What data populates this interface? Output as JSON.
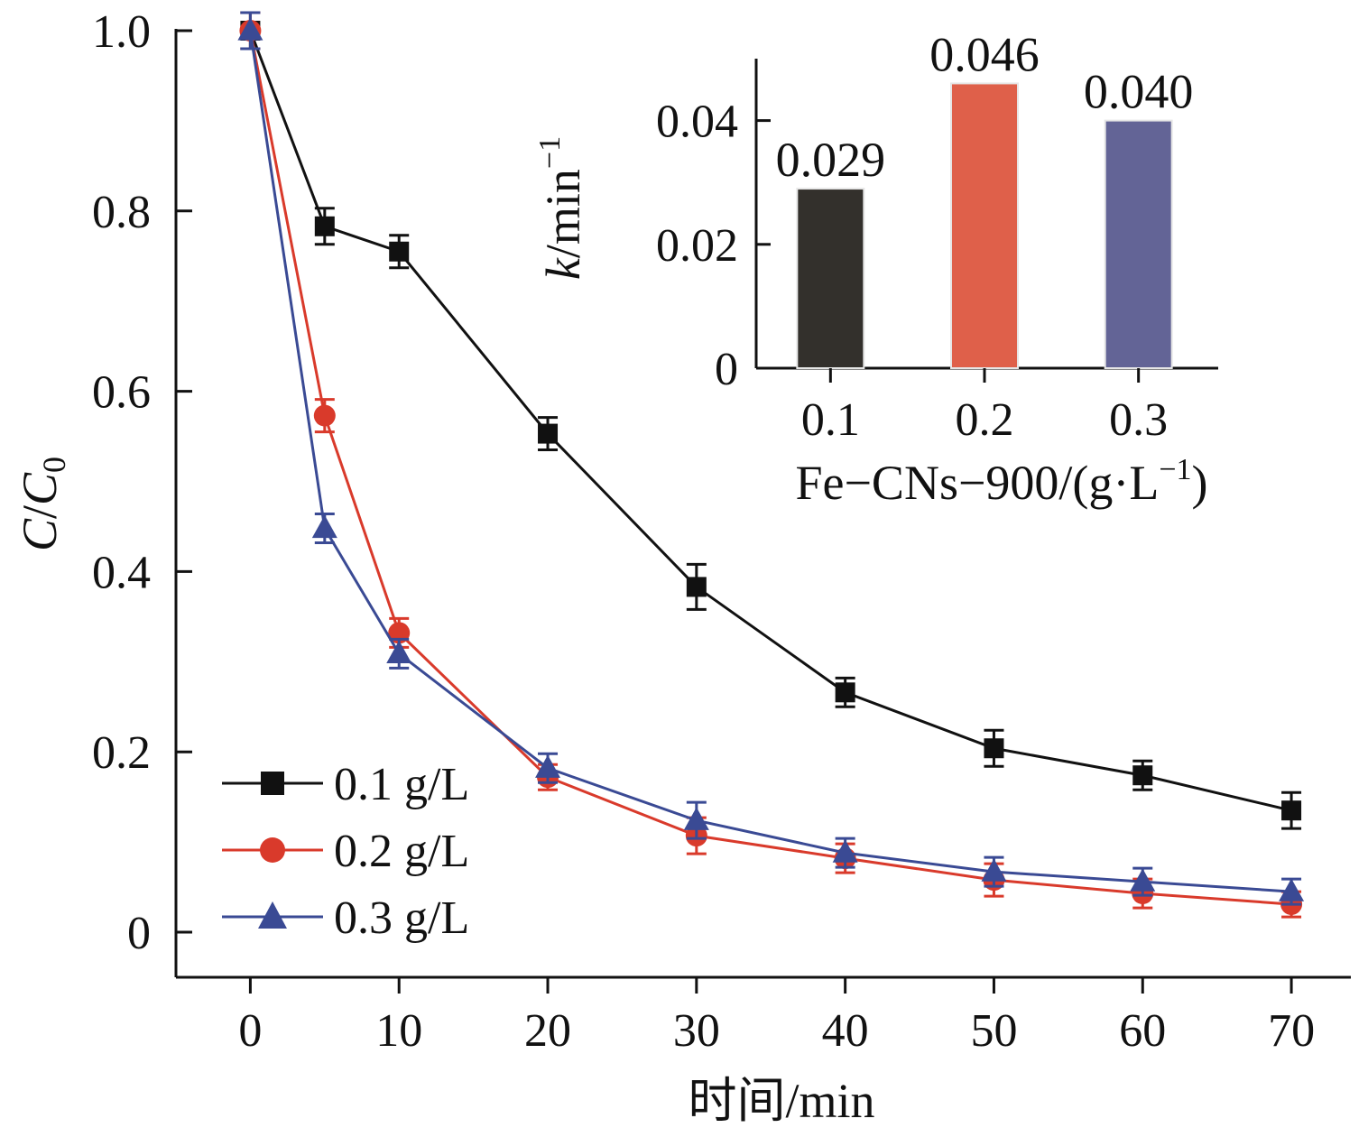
{
  "chart_data": [
    {
      "type": "line",
      "xlabel": "时间/min",
      "ylabel_main": "C",
      "ylabel_slash": "/",
      "ylabel_sub_base": "C",
      "ylabel_sub": "0",
      "xlim": [
        -5,
        74
      ],
      "ylim": [
        -0.05,
        1.0
      ],
      "xticks": [
        0,
        10,
        20,
        30,
        40,
        50,
        60,
        70
      ],
      "xtick_labels": [
        "0",
        "10",
        "20",
        "30",
        "40",
        "50",
        "60",
        "70"
      ],
      "yticks": [
        0,
        0.2,
        0.4,
        0.6,
        0.8,
        1.0
      ],
      "ytick_labels": [
        "0",
        "0.2",
        "0.4",
        "0.6",
        "0.8",
        "1.0"
      ],
      "grid": false,
      "legend_position": "bottom-left",
      "series": [
        {
          "name": "0.1 g/L",
          "color": "#111111",
          "marker": "square",
          "x": [
            0,
            5,
            10,
            20,
            30,
            40,
            50,
            60,
            70
          ],
          "y": [
            1.0,
            0.783,
            0.755,
            0.553,
            0.383,
            0.266,
            0.204,
            0.174,
            0.135
          ],
          "err": [
            0.02,
            0.02,
            0.018,
            0.018,
            0.025,
            0.016,
            0.02,
            0.016,
            0.02
          ]
        },
        {
          "name": "0.2 g/L",
          "color": "#d93a2b",
          "marker": "circle",
          "x": [
            0,
            5,
            10,
            20,
            30,
            40,
            50,
            60,
            70
          ],
          "y": [
            1.0,
            0.573,
            0.332,
            0.172,
            0.107,
            0.082,
            0.058,
            0.043,
            0.031
          ],
          "err": [
            0.02,
            0.018,
            0.016,
            0.014,
            0.02,
            0.016,
            0.018,
            0.016,
            0.014
          ]
        },
        {
          "name": "0.3 g/L",
          "color": "#3a4a94",
          "marker": "triangle",
          "x": [
            0,
            5,
            10,
            20,
            30,
            40,
            50,
            60,
            70
          ],
          "y": [
            1.0,
            0.448,
            0.309,
            0.182,
            0.124,
            0.088,
            0.067,
            0.056,
            0.045
          ],
          "err": [
            0.02,
            0.016,
            0.016,
            0.016,
            0.02,
            0.016,
            0.016,
            0.015,
            0.014
          ]
        }
      ]
    },
    {
      "type": "bar",
      "categories": [
        "0.1",
        "0.2",
        "0.3"
      ],
      "values": [
        0.029,
        0.046,
        0.04
      ],
      "value_labels": [
        "0.029",
        "0.046",
        "0.040"
      ],
      "colors": [
        "#33302c",
        "#df604a",
        "#636496"
      ],
      "xlabel": "Fe−CNs−900/(g·L",
      "xlabel_sup": "−1",
      "xlabel_tail": ")",
      "ylabel_italic": "k",
      "ylabel": "/min",
      "ylabel_sup": "−1",
      "ylim": [
        0,
        0.05
      ],
      "yticks": [
        0,
        0.02,
        0.04
      ],
      "ytick_labels": [
        "0",
        "0.02",
        "0.04"
      ],
      "grid": false
    }
  ]
}
